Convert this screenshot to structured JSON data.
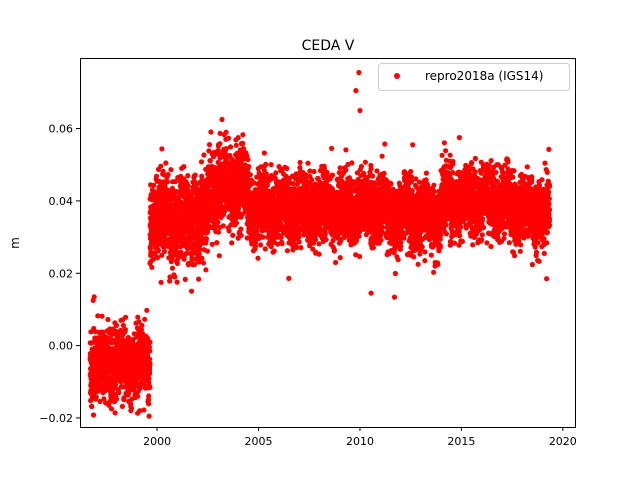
{
  "chart_data": {
    "type": "scatter",
    "title": "CEDA V",
    "xlabel": "",
    "ylabel": "m",
    "xlim": [
      1996.2,
      2020.6
    ],
    "ylim": [
      -0.0225,
      0.0795
    ],
    "x_ticks": [
      2000,
      2005,
      2010,
      2015,
      2020
    ],
    "x_tick_labels": [
      "2000",
      "2005",
      "2010",
      "2015",
      "2020"
    ],
    "y_ticks": [
      -0.02,
      0.0,
      0.02,
      0.04,
      0.06
    ],
    "y_tick_labels": [
      "−0.02",
      "0.00",
      "0.02",
      "0.04",
      "0.06"
    ],
    "grid": false,
    "legend": {
      "position": "top-right",
      "entries": [
        "repro2018a (IGS14)"
      ]
    },
    "series": [
      {
        "name": "repro2018a (IGS14)",
        "color": "#ff0000",
        "marker": "circle",
        "segments": [
          {
            "x_start": 1996.7,
            "x_end": 1999.65,
            "mean": -0.005,
            "sd": 0.0045
          },
          {
            "x_start": 1999.65,
            "x_end": 2002.5,
            "mean": 0.035,
            "sd": 0.0055
          },
          {
            "x_start": 2002.5,
            "x_end": 2004.5,
            "mean": 0.044,
            "sd": 0.0055
          },
          {
            "x_start": 2004.5,
            "x_end": 2011.3,
            "mean": 0.038,
            "sd": 0.0045
          },
          {
            "x_start": 2011.3,
            "x_end": 2014.0,
            "mean": 0.036,
            "sd": 0.0045
          },
          {
            "x_start": 2014.0,
            "x_end": 2017.3,
            "mean": 0.04,
            "sd": 0.0045
          },
          {
            "x_start": 2017.3,
            "x_end": 2019.35,
            "mean": 0.037,
            "sd": 0.0045
          }
        ],
        "outliers": [
          {
            "x": 1996.9,
            "y": 0.0135
          },
          {
            "x": 1996.85,
            "y": 0.0125
          },
          {
            "x": 1999.15,
            "y": -0.018
          },
          {
            "x": 1999.35,
            "y": -0.0178
          },
          {
            "x": 2000.2,
            "y": 0.0175
          },
          {
            "x": 2003.2,
            "y": 0.0625
          },
          {
            "x": 2003.4,
            "y": 0.059
          },
          {
            "x": 2004.0,
            "y": 0.0575
          },
          {
            "x": 2008.6,
            "y": 0.0545
          },
          {
            "x": 2009.6,
            "y": 0.0505
          },
          {
            "x": 2009.8,
            "y": 0.0705
          },
          {
            "x": 2009.95,
            "y": 0.0755
          },
          {
            "x": 2010.0,
            "y": 0.065
          },
          {
            "x": 2010.55,
            "y": 0.0145
          },
          {
            "x": 2012.6,
            "y": 0.0555
          },
          {
            "x": 2013.2,
            "y": 0.0235
          },
          {
            "x": 2014.9,
            "y": 0.0575
          },
          {
            "x": 2019.2,
            "y": 0.0185
          }
        ]
      }
    ]
  }
}
